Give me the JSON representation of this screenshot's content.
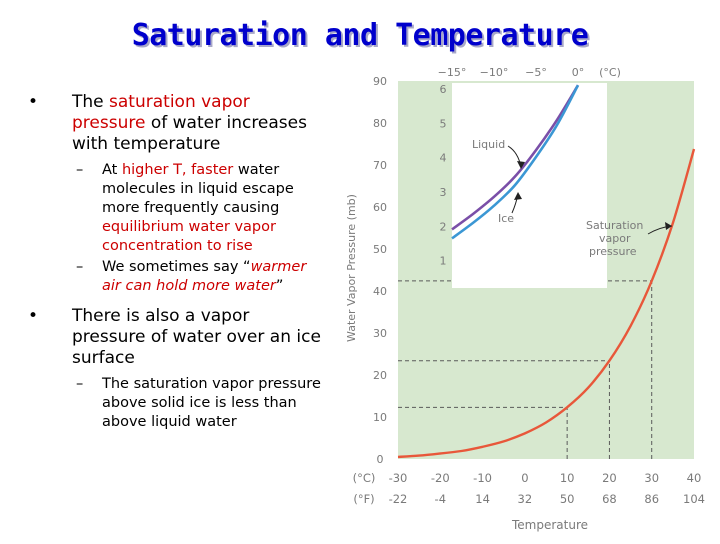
{
  "slide": {
    "title": "Saturation and Temperature"
  },
  "bullets": {
    "b1": {
      "p1": "The ",
      "p2": "saturation vapor pressure",
      "p3": " of water increases with temperature"
    },
    "b1a": {
      "p1": "At ",
      "p2": "higher T, faster",
      "p3": " water molecules in liquid escape more frequently causing ",
      "p4": "equilibrium water vapor concentration to rise"
    },
    "b1b": {
      "p1": "We sometimes say “",
      "p2": "warmer air can hold more water",
      "p3": "”"
    },
    "b2": {
      "text": "There is also a vapor pressure of water over an ice surface"
    },
    "b2a": {
      "text": "The saturation vapor pressure above solid ice is less than above liquid water"
    }
  },
  "chart_data": [
    {
      "type": "line",
      "ylabel": "Water Vapor Pressure (mb)",
      "xlabel": "Temperature",
      "ylim": [
        0,
        90
      ],
      "xlim": [
        -30,
        40
      ],
      "x_ticks_c": [
        -30,
        -20,
        -10,
        0,
        10,
        20,
        30,
        40
      ],
      "x_ticks_f": [
        -22,
        -4,
        14,
        32,
        50,
        68,
        86,
        104
      ],
      "x_unit_c": "(°C)",
      "x_unit_f": "(°F)",
      "y_ticks": [
        0,
        10,
        20,
        30,
        40,
        50,
        60,
        70,
        80,
        90
      ],
      "series": [
        {
          "name": "Saturation vapor pressure",
          "color": "#e8573a",
          "x": [
            -30,
            -25,
            -20,
            -15,
            -10,
            -5,
            0,
            5,
            10,
            15,
            20,
            25,
            30,
            35,
            40
          ],
          "values": [
            0.5,
            0.8,
            1.3,
            1.9,
            2.9,
            4.2,
            6.1,
            8.7,
            12.3,
            17.0,
            23.4,
            31.7,
            42.4,
            56.2,
            73.8
          ]
        }
      ],
      "annotations": [
        "Saturation vapor pressure"
      ]
    },
    {
      "type": "line",
      "type_note": "inset",
      "ylim": [
        0,
        6
      ],
      "xlim": [
        -15,
        0
      ],
      "x_ticks": [
        "−15°",
        "−10°",
        "−5°",
        "0°",
        "(°C)"
      ],
      "y_ticks": [
        1,
        2,
        3,
        4,
        5,
        6
      ],
      "series": [
        {
          "name": "Liquid",
          "color": "#7a4fa8",
          "x": [
            -15,
            -12.5,
            -10,
            -7.5,
            -5,
            -2.5,
            0
          ],
          "values": [
            1.91,
            2.36,
            2.86,
            3.45,
            4.22,
            5.1,
            6.11
          ]
        },
        {
          "name": "Ice",
          "color": "#3b97d4",
          "x": [
            -15,
            -12.5,
            -10,
            -7.5,
            -5,
            -2.5,
            0
          ],
          "values": [
            1.65,
            2.1,
            2.6,
            3.2,
            4.02,
            4.95,
            6.11
          ]
        }
      ]
    }
  ],
  "colors": {
    "title": "#0000cc",
    "title_shadow": "#a8a8c8",
    "highlight": "#cc0000",
    "plot_bg": "#d7e8cf",
    "axis_text": "#7a7a7a"
  }
}
